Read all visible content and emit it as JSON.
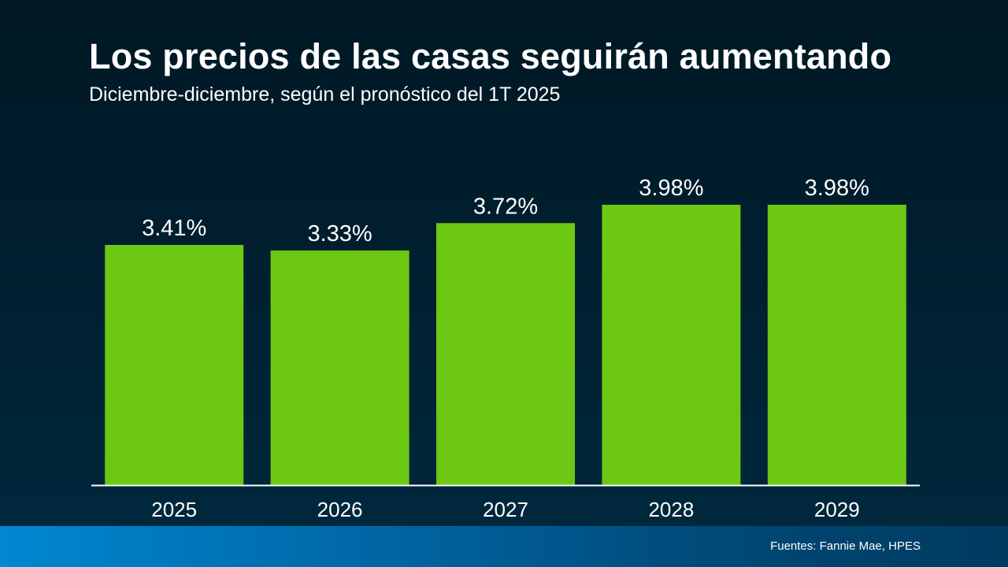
{
  "header": {
    "title": "Los precios de las casas seguirán aumentando",
    "subtitle": "Diciembre-diciembre, según el pronóstico del 1T 2025"
  },
  "footer": {
    "source": "Fuentes: Fannie Mae, HPES"
  },
  "colors": {
    "bar": "#6cc813",
    "axis": "#ffffff",
    "text": "#ffffff"
  },
  "chart_data": {
    "type": "bar",
    "title": "Los precios de las casas seguirán aumentando",
    "subtitle": "Diciembre-diciembre, según el pronóstico del 1T 2025",
    "categories": [
      "2025",
      "2026",
      "2027",
      "2028",
      "2029"
    ],
    "values": [
      3.41,
      3.33,
      3.72,
      3.98,
      3.98
    ],
    "data_labels": [
      "3.41%",
      "3.33%",
      "3.72%",
      "3.98%",
      "3.98%"
    ],
    "unit": "%",
    "ylim": [
      0,
      4.6
    ],
    "grid": false,
    "legend": "none",
    "xlabel": "",
    "ylabel": ""
  }
}
